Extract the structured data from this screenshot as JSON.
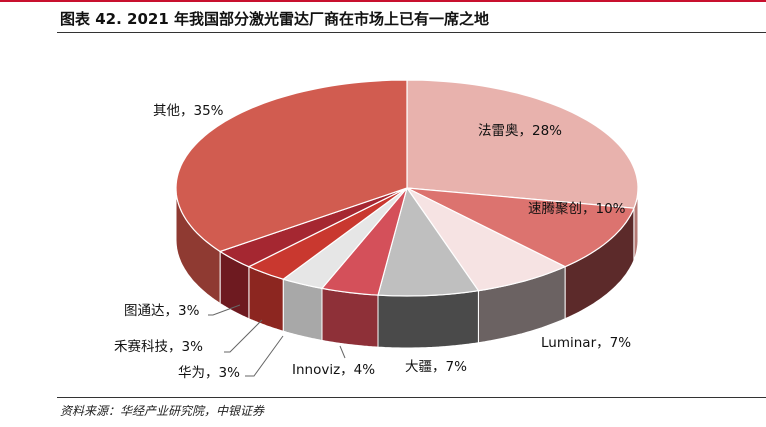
{
  "title": "图表 42. 2021 年我国部分激光雷达厂商在市场上已有一席之地",
  "source": "资料来源：华经产业研究院，中银证券",
  "chart_data": {
    "type": "pie",
    "title": "2021 年我国部分激光雷达厂商在市场上已有一席之地",
    "start": "top, clockwise",
    "slices": [
      {
        "name": "法雷奥",
        "value": 28,
        "label": "法雷奥，28%",
        "color": "#E8B2AD",
        "side": "#B57A75"
      },
      {
        "name": "速腾聚创",
        "value": 10,
        "label": "速腾聚创，10%",
        "color": "#DC736F",
        "side": "#5C2A2A"
      },
      {
        "name": "Luminar",
        "value": 7,
        "label": "Luminar，7%",
        "color": "#F6E3E3",
        "side": "#6B6262"
      },
      {
        "name": "大疆",
        "value": 7,
        "label": "大疆，7%",
        "color": "#BFBFBF",
        "side": "#4A4A4A"
      },
      {
        "name": "Innoviz",
        "value": 4,
        "label": "Innoviz，4%",
        "color": "#D4505A",
        "side": "#8E3038"
      },
      {
        "name": "华为",
        "value": 3,
        "label": "华为，3%",
        "color": "#E6E6E6",
        "side": "#A8A8A8"
      },
      {
        "name": "禾赛科技",
        "value": 3,
        "label": "禾赛科技，3%",
        "color": "#C9382F",
        "side": "#8C2620"
      },
      {
        "name": "图通达",
        "value": 3,
        "label": "图通达，3%",
        "color": "#A52731",
        "side": "#6E1A20"
      },
      {
        "name": "其他",
        "value": 35,
        "label": "其他，35%",
        "color": "#D15C50",
        "side": "#8F3A32"
      }
    ]
  }
}
